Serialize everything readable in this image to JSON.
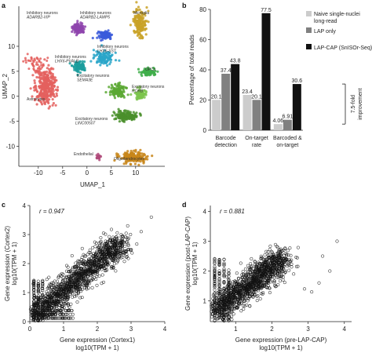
{
  "panels": {
    "a": "a",
    "b": "b",
    "c": "c",
    "d": "d"
  },
  "umap": {
    "xlabel": "UMAP_1",
    "ylabel": "UMAP_2",
    "xticks": [
      "-10",
      "-5",
      "0",
      "5",
      "10"
    ],
    "yticks": [
      "10",
      "5",
      "0",
      "-5",
      "-10"
    ],
    "clusters": [
      {
        "line1": "Inhibitory neurons",
        "line2": "ADARB2-VIP",
        "color": "#8e44ad"
      },
      {
        "line1": "Inhibitory neurons",
        "line2": "ADARB2-LAMP5",
        "color": "#3b5bdb"
      },
      {
        "line1": "Microglia",
        "line2": "",
        "color": "#c9a227"
      },
      {
        "line1": "Inhibitory neurons",
        "line2": "LHX6-PVALB",
        "color": "#1c9e9e"
      },
      {
        "line1": "Inhibitory neurons",
        "line2": "LHX6-SST",
        "color": "#2aa6c9"
      },
      {
        "line1": "Astrocytes",
        "line2": "",
        "color": "#e4605e"
      },
      {
        "line1": "Excitatory neurons",
        "line2": "SEMA3E",
        "color": "#5aa832"
      },
      {
        "line1": "Excitatory neurons",
        "line2": "RORB",
        "color": "#7cc44e"
      },
      {
        "line1": "Excitatory neurons",
        "line2": "LINC00507",
        "color": "#4a8f2c"
      },
      {
        "line1": "Endothelial",
        "line2": "",
        "color": "#b04a7a"
      },
      {
        "line1": "Oligodendrocytes",
        "line2": "",
        "color": "#c8861a"
      },
      {
        "line1": "OPCs",
        "line2": "",
        "color": "#3fae4a"
      }
    ]
  },
  "chart_data": [
    {
      "type": "bar",
      "panel": "b",
      "ylabel": "Percentage of total reads",
      "ylim": [
        0,
        80
      ],
      "yticks": [
        "0",
        "20",
        "40",
        "60",
        "80"
      ],
      "categories": [
        [
          "Barcode",
          "detection"
        ],
        [
          "On-target",
          "rate"
        ],
        [
          "Barcoded &",
          "on-target"
        ]
      ],
      "series": [
        {
          "name": "Naive single-nuclei long-read",
          "color": "#cccccc",
          "values": [
            20.1,
            23.4,
            4.06
          ],
          "labels": [
            "20.1",
            "23.4",
            "4.06"
          ]
        },
        {
          "name": "LAP only",
          "color": "#808080",
          "values": [
            37.4,
            20.1,
            6.91
          ],
          "labels": [
            "37.4",
            "20.1",
            "6.91"
          ]
        },
        {
          "name": "LAP-CAP (SnISOr-Seq)",
          "color": "#111111",
          "values": [
            43.8,
            77.5,
            30.6
          ],
          "labels": [
            "43.8",
            "77.5",
            "30.6"
          ]
        }
      ],
      "annotation": [
        "7.5-fold",
        "improvement"
      ]
    },
    {
      "type": "scatter",
      "panel": "c",
      "xlabel": "Gene expression (Cortex1)",
      "xlabel2": "log10(TPM + 1)",
      "ylabel": "Gene expression (Cortex2)",
      "ylabel2": "log10(TPM + 1)",
      "r_label": "r = 0.947",
      "xlim": [
        0,
        4
      ],
      "ylim": [
        0,
        4
      ],
      "xticks": [
        "0",
        "1",
        "2",
        "3",
        "4"
      ],
      "yticks": [
        "0",
        "1",
        "2",
        "3",
        "4"
      ],
      "r": 0.947
    },
    {
      "type": "scatter",
      "panel": "d",
      "xlabel": "Gene expression (pre-LAP-CAP)",
      "xlabel2": "log10(TPM + 1)",
      "ylabel": "Gene expression (post-LAP-CAP)",
      "ylabel2": "log10(TPM + 1)",
      "r_label": "r = 0.881",
      "xlim": [
        0,
        4
      ],
      "ylim": [
        0,
        4
      ],
      "xticks": [
        "1",
        "2",
        "3",
        "4"
      ],
      "yticks": [
        "1",
        "2",
        "3",
        "4"
      ],
      "r": 0.881
    }
  ]
}
